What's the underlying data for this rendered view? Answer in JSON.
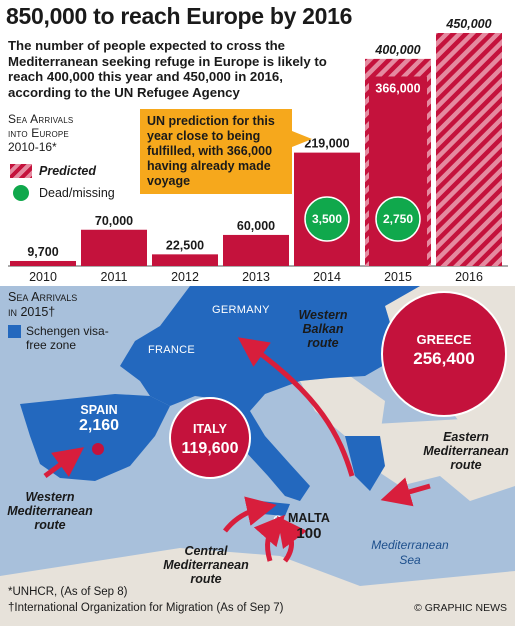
{
  "headline": "850,000 to reach Europe by 2016",
  "intro": "The number of people expected to cross the Mediterranean seeking refuge in Europe is likely to reach 400,000 this year and 450,000 in 2016, according to the UN Refugee Agency",
  "chart_label": {
    "line1": "Sea Arrivals",
    "line2": "into Europe",
    "line3": "2010-16*"
  },
  "legend": {
    "predicted": "Predicted",
    "dead": "Dead/missing"
  },
  "callout": "UN prediction for this year close to being fulfilled, with 366,000 having already made voyage",
  "colors": {
    "bar": "#c4123c",
    "predicted_light": "#e58aa0",
    "dead": "#10a84c",
    "callout": "#f6a81c",
    "schengen": "#2368be",
    "sea": "#a8c0db"
  },
  "chart_data": {
    "type": "bar",
    "categories": [
      "2010",
      "2011",
      "2012",
      "2013",
      "2014",
      "2015",
      "2016"
    ],
    "values": [
      9700,
      70000,
      22500,
      60000,
      219000,
      366000,
      null
    ],
    "value_labels": [
      "9,700",
      "70,000",
      "22,500",
      "60,000",
      "219,000",
      "366,000",
      ""
    ],
    "predicted": [
      null,
      null,
      null,
      null,
      null,
      400000,
      450000
    ],
    "predicted_labels": [
      "",
      "",
      "",
      "",
      "",
      "400,000",
      "450,000"
    ],
    "dead_missing": [
      null,
      null,
      null,
      null,
      3500,
      2750,
      null
    ],
    "dead_labels": [
      "",
      "",
      "",
      "",
      "3,500",
      "2,750",
      ""
    ],
    "ylim": [
      0,
      450000
    ]
  },
  "map": {
    "label": {
      "line1": "Sea Arrivals",
      "line2": "in 2015†"
    },
    "legend": "Schengen visa-free zone",
    "countries": {
      "france": "FRANCE",
      "germany": "GERMANY"
    },
    "spain": {
      "name": "SPAIN",
      "value": "2,160"
    },
    "italy": {
      "name": "ITALY",
      "value": "119,600"
    },
    "greece": {
      "name": "GREECE",
      "value": "256,400"
    },
    "malta": {
      "name": "MALTA",
      "value": "100"
    },
    "routes": {
      "western_balkan": "Western Balkan route",
      "eastern_med": "Eastern Mediterranean route",
      "western_med": "Western Mediterranean route",
      "central_med": "Central Mediterranean route"
    },
    "sea": "Mediterranean Sea"
  },
  "footnotes": {
    "unhcr": "*UNHCR, (As of Sep 8)",
    "iom": "†International Organization for Migration (As of Sep 7)"
  },
  "credit": "© GRAPHIC NEWS"
}
